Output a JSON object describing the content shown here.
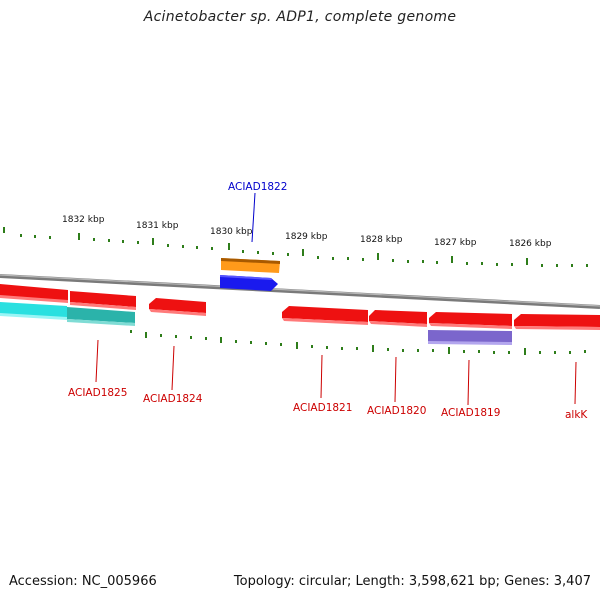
{
  "title": "Acinetobacter sp. ADP1, complete genome",
  "footer": {
    "accession": "Accession: NC_005966",
    "summary": "Topology: circular; Length: 3,598,621 bp; Genes: 3,407"
  },
  "colors": {
    "backbone": "#8a8a8a",
    "tick": "#2e7d1a",
    "gene_red": "#ee1111",
    "gene_cyan": "#22dddd",
    "gene_teal": "#2bb3aa",
    "gene_orange": "#ff8c00",
    "gene_blue": "#1111ee",
    "gene_purple": "#7b66cc",
    "label_red": "#cc0000",
    "label_blue": "#0000cc"
  },
  "scale_labels": [
    "1832 kbp",
    "1831 kbp",
    "1830 kbp",
    "1829 kbp",
    "1828 kbp",
    "1827 kbp",
    "1826 kbp"
  ],
  "gene_labels": [
    {
      "id": "ACIAD1822",
      "color": "blue"
    },
    {
      "id": "ACIAD1825",
      "color": "red"
    },
    {
      "id": "ACIAD1824",
      "color": "red"
    },
    {
      "id": "ACIAD1821",
      "color": "red"
    },
    {
      "id": "ACIAD1820",
      "color": "red"
    },
    {
      "id": "ACIAD1819",
      "color": "red"
    },
    {
      "id": "alkK",
      "color": "red"
    }
  ]
}
